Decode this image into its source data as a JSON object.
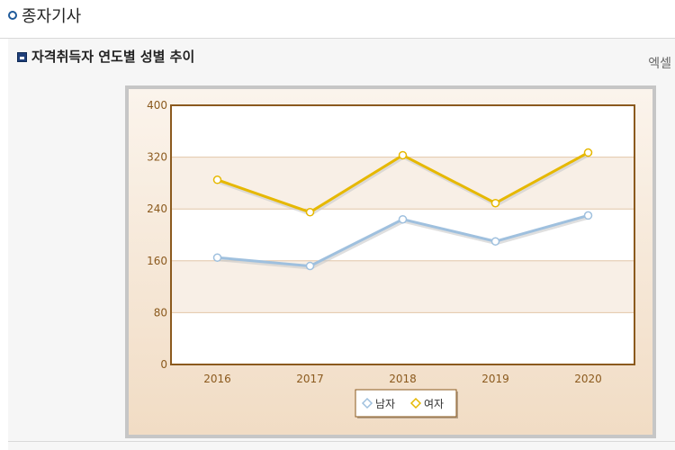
{
  "page": {
    "title": "종자기사"
  },
  "section": {
    "title": "자격취득자 연도별 성별 추이",
    "excel_label": "엑셀"
  },
  "colors": {
    "male": "#9fc0de",
    "female": "#e6b800",
    "axis": "#8b5a1e",
    "tick_text": "#8b5a1e"
  },
  "chart_data": {
    "type": "line",
    "title": "",
    "xlabel": "",
    "ylabel": "",
    "categories": [
      "2016",
      "2017",
      "2018",
      "2019",
      "2020"
    ],
    "yticks": [
      "0",
      "80",
      "160",
      "240",
      "320",
      "400"
    ],
    "ylim": [
      0,
      400
    ],
    "legend_position": "bottom-center",
    "series": [
      {
        "name": "남자",
        "values": [
          165,
          152,
          224,
          190,
          230
        ]
      },
      {
        "name": "여자",
        "values": [
          285,
          235,
          323,
          249,
          327
        ]
      }
    ]
  }
}
